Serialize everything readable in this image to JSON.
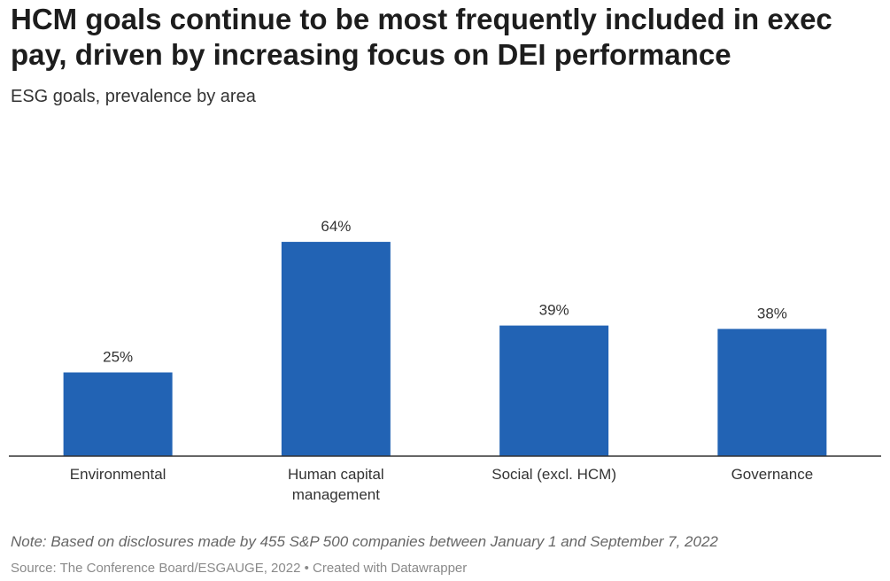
{
  "chart_data": {
    "type": "bar",
    "title": "HCM goals continue to be most frequently included in exec pay, driven by increasing focus on DEI performance",
    "subtitle": "ESG goals, prevalence by area",
    "categories": [
      [
        "Environmental"
      ],
      [
        "Human capital",
        "management"
      ],
      [
        "Social (excl. HCM)"
      ],
      [
        "Governance"
      ]
    ],
    "values": [
      25,
      64,
      39,
      38
    ],
    "value_labels": [
      "25%",
      "64%",
      "39%",
      "38%"
    ],
    "ylim": [
      0,
      100
    ],
    "grid": false,
    "legend": "none",
    "bar_color": "#2263b4",
    "axis_color": "#333333"
  },
  "footer": {
    "note": "Note: Based on disclosures made by 455 S&P 500 companies between January 1 and September 7, 2022",
    "source": "Source: The Conference Board/ESGAUGE, 2022 • Created with Datawrapper"
  }
}
